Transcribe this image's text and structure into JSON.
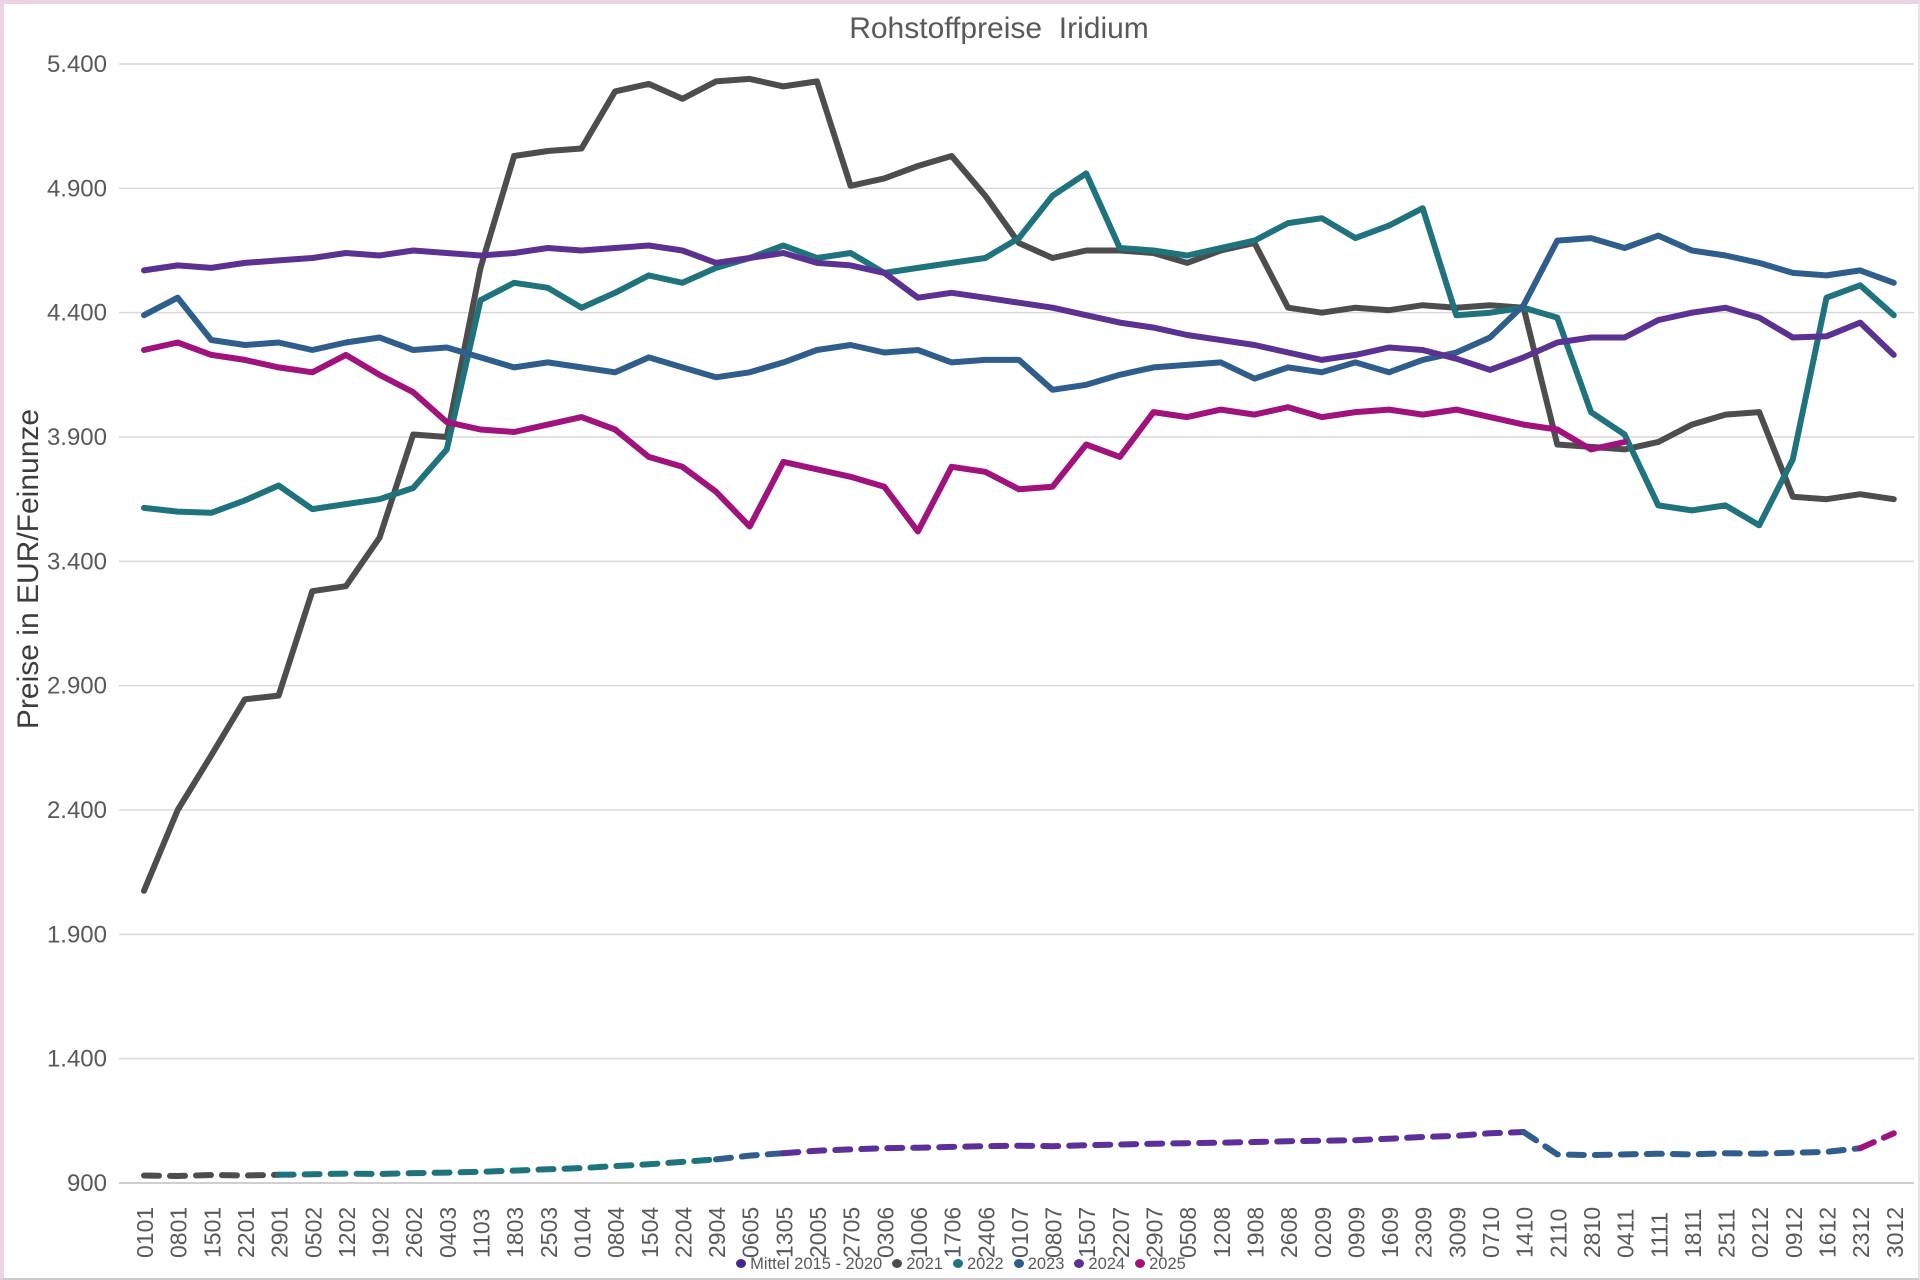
{
  "title": "Rohstoffpreise  Iridium",
  "y_axis": {
    "title": "Preise in EUR/Feinunze",
    "tick_labels": [
      "5.400",
      "4.900",
      "4.400",
      "3.900",
      "3.400",
      "2.900",
      "2.400",
      "1.900",
      "1.400",
      "900"
    ],
    "min": 900,
    "max": 5400,
    "step": 500
  },
  "x_axis": {
    "tick_labels": [
      "0101",
      "0801",
      "1501",
      "2201",
      "2901",
      "0502",
      "1202",
      "1902",
      "2602",
      "0403",
      "1103",
      "1803",
      "2503",
      "0104",
      "0804",
      "1504",
      "2204",
      "2904",
      "0605",
      "1305",
      "2005",
      "2705",
      "0306",
      "1006",
      "1706",
      "2406",
      "0107",
      "0807",
      "1507",
      "2207",
      "2907",
      "0508",
      "1208",
      "1908",
      "2608",
      "0209",
      "0909",
      "1609",
      "2309",
      "3009",
      "0710",
      "1410",
      "2110",
      "2810",
      "0411",
      "1111",
      "1811",
      "2511",
      "0212",
      "0912",
      "1612",
      "2312",
      "3012"
    ]
  },
  "legend": [
    {
      "label": "Mittel 2015 - 2020",
      "color": "#46288c"
    },
    {
      "label": "2021",
      "color": "#4d4d4d"
    },
    {
      "label": "2022",
      "color": "#1f737c"
    },
    {
      "label": "2023",
      "color": "#2f5e8d"
    },
    {
      "label": "2024",
      "color": "#5b3191"
    },
    {
      "label": "2025",
      "color": "#a0127c"
    }
  ],
  "colors": {
    "grid": "#d9d9d9",
    "axis": "#bfbfbf",
    "title_text": "#595959",
    "tick_text": "#595959"
  },
  "chart_data": {
    "type": "line",
    "title": "Rohstoffpreise Iridium",
    "xlabel": "",
    "ylabel": "Preise in EUR/Feinunze",
    "ylim": [
      900,
      5400
    ],
    "grid": "horizontal",
    "legend_position": "bottom",
    "x_categories": [
      "0101",
      "0801",
      "1501",
      "2201",
      "2901",
      "0502",
      "1202",
      "1902",
      "2602",
      "0403",
      "1103",
      "1803",
      "2503",
      "0104",
      "0804",
      "1504",
      "2204",
      "2904",
      "0605",
      "1305",
      "2005",
      "2705",
      "0306",
      "1006",
      "1706",
      "2406",
      "0107",
      "0807",
      "1507",
      "2207",
      "2907",
      "0508",
      "1208",
      "1908",
      "2608",
      "0209",
      "0909",
      "1609",
      "2309",
      "3009",
      "0710",
      "1410",
      "2110",
      "2810",
      "0411",
      "1111",
      "1811",
      "2511",
      "0212",
      "0912",
      "1612",
      "2312",
      "3012"
    ],
    "series": [
      {
        "name": "Mittel 2015 - 2020",
        "style": "dashed",
        "color": "#5c2f99",
        "values": [
          930,
          928,
          932,
          930,
          933,
          935,
          938,
          936,
          940,
          942,
          945,
          950,
          955,
          960,
          968,
          975,
          985,
          995,
          1010,
          1020,
          1030,
          1035,
          1040,
          1042,
          1045,
          1048,
          1050,
          1048,
          1052,
          1055,
          1058,
          1060,
          1062,
          1065,
          1068,
          1070,
          1072,
          1078,
          1085,
          1090,
          1100,
          1105,
          1015,
          1012,
          1015,
          1018,
          1015,
          1020,
          1018,
          1022,
          1025,
          1040,
          1100
        ],
        "color_segments": [
          {
            "start": 0,
            "end": 4,
            "color": "#4d4d4d"
          },
          {
            "start": 4,
            "end": 17,
            "color": "#1f737c"
          },
          {
            "start": 17,
            "end": 19,
            "color": "#2f5e8d"
          },
          {
            "start": 19,
            "end": 41,
            "color": "#5c2f99"
          },
          {
            "start": 41,
            "end": 51,
            "color": "#2f5e8d"
          },
          {
            "start": 51,
            "end": 52,
            "color": "#a0127c"
          }
        ]
      },
      {
        "name": "2021",
        "style": "solid",
        "color": "#4d4d4d",
        "values": [
          2075,
          2400,
          2620,
          2845,
          2860,
          3280,
          3300,
          3495,
          3910,
          3900,
          4580,
          5030,
          5050,
          5060,
          5290,
          5320,
          5260,
          5330,
          5340,
          5310,
          5330,
          4910,
          4940,
          4990,
          5030,
          4870,
          4680,
          4620,
          4650,
          4650,
          4640,
          4600,
          4650,
          4680,
          4420,
          4400,
          4420,
          4410,
          4430,
          4420,
          4430,
          4420,
          3870,
          3860,
          3850,
          3880,
          3950,
          3990,
          4000,
          3660,
          3650,
          3670,
          3650
        ]
      },
      {
        "name": "2022",
        "style": "solid",
        "color": "#1f737c",
        "values": [
          3615,
          3600,
          3595,
          3645,
          3705,
          3610,
          3630,
          3650,
          3695,
          3850,
          4450,
          4520,
          4500,
          4420,
          4480,
          4550,
          4520,
          4580,
          4620,
          4670,
          4620,
          4640,
          4560,
          4580,
          4600,
          4620,
          4700,
          4870,
          4960,
          4660,
          4650,
          4630,
          4660,
          4690,
          4760,
          4780,
          4700,
          4750,
          4820,
          4390,
          4400,
          4420,
          4380,
          4000,
          3910,
          3625,
          3605,
          3625,
          3545,
          3810,
          4460,
          4510,
          4390
        ]
      },
      {
        "name": "2023",
        "style": "solid",
        "color": "#2f5e8d",
        "values": [
          4390,
          4460,
          4290,
          4270,
          4280,
          4250,
          4280,
          4300,
          4250,
          4260,
          4220,
          4180,
          4200,
          4180,
          4160,
          4220,
          4180,
          4140,
          4160,
          4200,
          4250,
          4270,
          4240,
          4250,
          4200,
          4210,
          4210,
          4090,
          4110,
          4150,
          4180,
          4190,
          4200,
          4135,
          4180,
          4160,
          4200,
          4160,
          4210,
          4240,
          4300,
          4430,
          4690,
          4700,
          4660,
          4710,
          4650,
          4630,
          4600,
          4560,
          4550,
          4570,
          4520
        ]
      },
      {
        "name": "2024",
        "style": "solid",
        "color": "#5b3191",
        "values": [
          4570,
          4590,
          4580,
          4600,
          4610,
          4620,
          4640,
          4630,
          4650,
          4640,
          4630,
          4640,
          4660,
          4650,
          4660,
          4670,
          4650,
          4600,
          4620,
          4640,
          4600,
          4590,
          4560,
          4460,
          4480,
          4460,
          4440,
          4420,
          4390,
          4360,
          4340,
          4310,
          4290,
          4270,
          4240,
          4210,
          4230,
          4260,
          4250,
          4215,
          4170,
          4220,
          4280,
          4300,
          4300,
          4370,
          4400,
          4420,
          4380,
          4300,
          4305,
          4360,
          4230
        ]
      },
      {
        "name": "2025",
        "style": "solid",
        "color": "#a0127c",
        "values": [
          4250,
          4280,
          4230,
          4210,
          4180,
          4160,
          4230,
          4150,
          4080,
          3960,
          3930,
          3920,
          3950,
          3980,
          3930,
          3820,
          3780,
          3680,
          3540,
          3800,
          3770,
          3740,
          3700,
          3520,
          3780,
          3760,
          3690,
          3700,
          3870,
          3820,
          4000,
          3980,
          4010,
          3990,
          4020,
          3980,
          4000,
          4010,
          3990,
          4010,
          3980,
          3950,
          3930,
          3850,
          3880
        ]
      }
    ]
  }
}
